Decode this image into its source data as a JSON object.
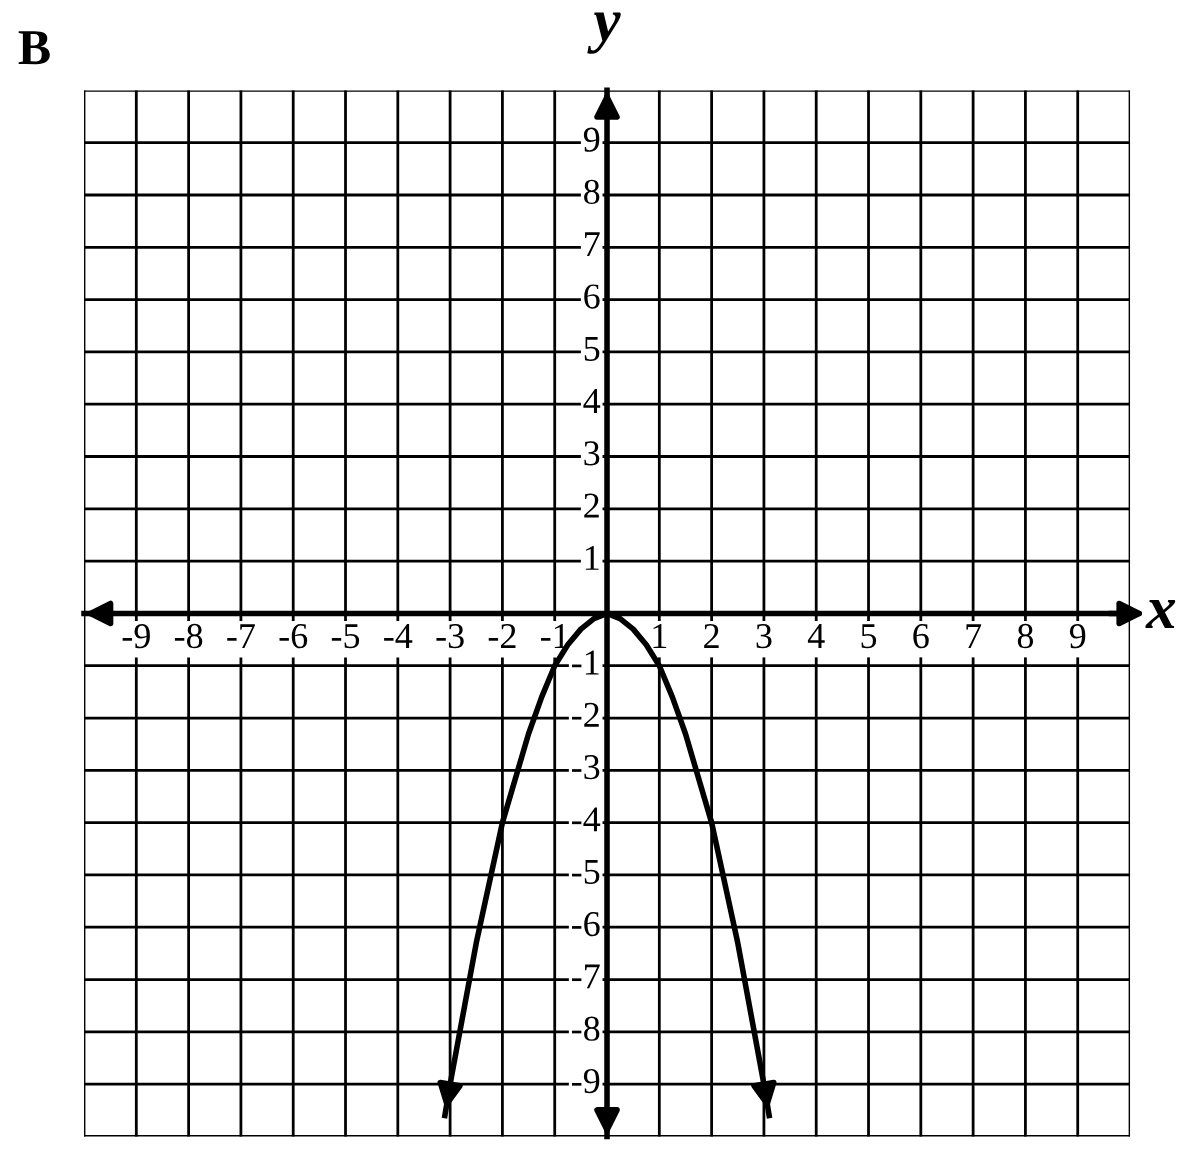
{
  "chart_data": {
    "type": "line",
    "title": "B",
    "xlabel": "x",
    "ylabel": "y",
    "x": [
      -3.1,
      -3,
      -2.5,
      -2,
      -1.5,
      -1.25,
      -1,
      -0.75,
      -0.5,
      -0.25,
      0,
      0.25,
      0.5,
      0.75,
      1,
      1.25,
      1.5,
      2,
      2.5,
      3,
      3.1
    ],
    "series": [
      {
        "color": "#000000",
        "values": [
          -9.6,
          -9,
          -6.3,
          -4,
          -2.3,
          -1.6,
          -1,
          -0.6,
          -0.3,
          -0.1,
          0,
          -0.1,
          -0.3,
          -0.6,
          -1,
          -1.6,
          -2.3,
          -4,
          -6.3,
          -9,
          -9.6
        ]
      }
    ],
    "xlim": [
      -10,
      10
    ],
    "ylim": [
      -10,
      10
    ],
    "xticks": [
      {
        "value": -10,
        "label": null
      },
      -9,
      -8,
      -7,
      -6,
      -5,
      -4,
      -3,
      -2,
      -1,
      {
        "value": 0,
        "label": null
      },
      1,
      2,
      3,
      4,
      5,
      6,
      7,
      8,
      9,
      {
        "value": 10,
        "label": null
      }
    ],
    "yticks": [
      {
        "value": -10,
        "label": null
      },
      -9,
      -8,
      -7,
      -6,
      -5,
      -4,
      -3,
      -2,
      -1,
      {
        "value": 0,
        "label": null
      },
      1,
      2,
      3,
      4,
      5,
      6,
      7,
      8,
      9,
      {
        "value": 10,
        "label": null
      }
    ],
    "grid": true,
    "marker": "none",
    "line_style": "solid"
  }
}
